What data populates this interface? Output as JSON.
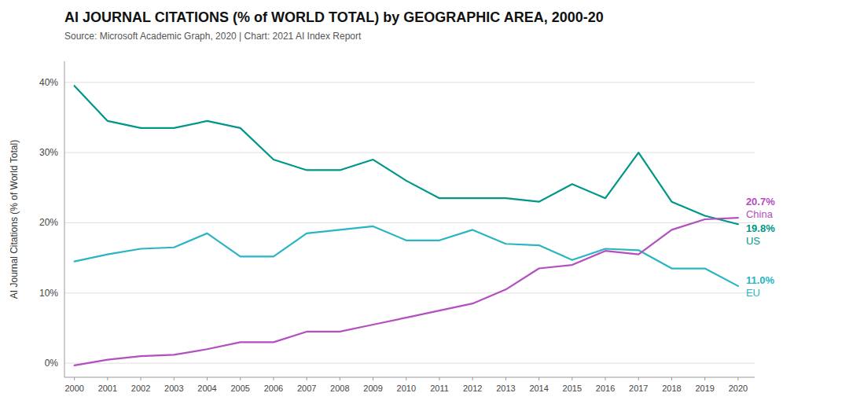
{
  "chart_data": {
    "type": "line",
    "title": "AI JOURNAL CITATIONS (% of WORLD TOTAL) by GEOGRAPHIC AREA, 2000-20",
    "subtitle": "Source: Microsoft Academic Graph, 2020 | Chart: 2021 AI Index Report",
    "y_label": "AI Journal Citations (% of World Total)",
    "x": [
      2000,
      2001,
      2002,
      2003,
      2004,
      2005,
      2006,
      2007,
      2008,
      2009,
      2010,
      2011,
      2012,
      2013,
      2014,
      2015,
      2016,
      2017,
      2018,
      2019,
      2020
    ],
    "series": [
      {
        "name": "US",
        "color": "#009688",
        "values": [
          39.5,
          34.5,
          33.5,
          33.5,
          34.5,
          33.5,
          29.0,
          27.5,
          27.5,
          29.0,
          26.0,
          23.5,
          23.5,
          23.5,
          23.0,
          25.5,
          23.5,
          30.0,
          23.0,
          21.0,
          19.8
        ],
        "value_labels": [
          null,
          null,
          null,
          null,
          null,
          null,
          null,
          null,
          null,
          null,
          null,
          null,
          null,
          null,
          null,
          null,
          null,
          null,
          null,
          null,
          "19.8%"
        ]
      },
      {
        "name": "EU",
        "color": "#29b5c3",
        "values": [
          14.5,
          15.5,
          16.3,
          16.5,
          18.5,
          15.2,
          15.2,
          18.5,
          19.0,
          19.5,
          17.5,
          17.5,
          19.0,
          17.0,
          16.8,
          14.7,
          16.3,
          16.1,
          13.5,
          13.5,
          11.0
        ],
        "value_labels": [
          null,
          null,
          null,
          null,
          null,
          null,
          null,
          null,
          null,
          null,
          null,
          null,
          null,
          null,
          null,
          null,
          null,
          null,
          null,
          null,
          "11.0%"
        ]
      },
      {
        "name": "China",
        "color": "#b44fc0",
        "values": [
          -0.3,
          0.5,
          1.0,
          1.2,
          2.0,
          3.0,
          3.0,
          4.5,
          4.5,
          5.5,
          6.5,
          7.5,
          8.5,
          10.5,
          13.5,
          14.0,
          16.0,
          15.5,
          19.0,
          20.5,
          20.7
        ],
        "value_labels": [
          null,
          null,
          null,
          null,
          null,
          null,
          null,
          null,
          null,
          null,
          null,
          null,
          null,
          null,
          null,
          null,
          null,
          null,
          null,
          null,
          "20.7%"
        ]
      }
    ],
    "xlim": [
      1999.7,
      2020.5
    ],
    "xticks": [
      2000,
      2001,
      2002,
      2003,
      2004,
      2005,
      2006,
      2007,
      2008,
      2009,
      2010,
      2011,
      2012,
      2013,
      2014,
      2015,
      2016,
      2017,
      2018,
      2019,
      2020
    ],
    "ylim": [
      -2,
      43
    ],
    "yticks": [
      {
        "value": 0,
        "label": "0%"
      },
      {
        "value": 10,
        "label": "10%"
      },
      {
        "value": 20,
        "label": "20%"
      },
      {
        "value": 30,
        "label": "30%"
      },
      {
        "value": 40,
        "label": "40%"
      }
    ],
    "grid": true,
    "data_labels": true
  }
}
